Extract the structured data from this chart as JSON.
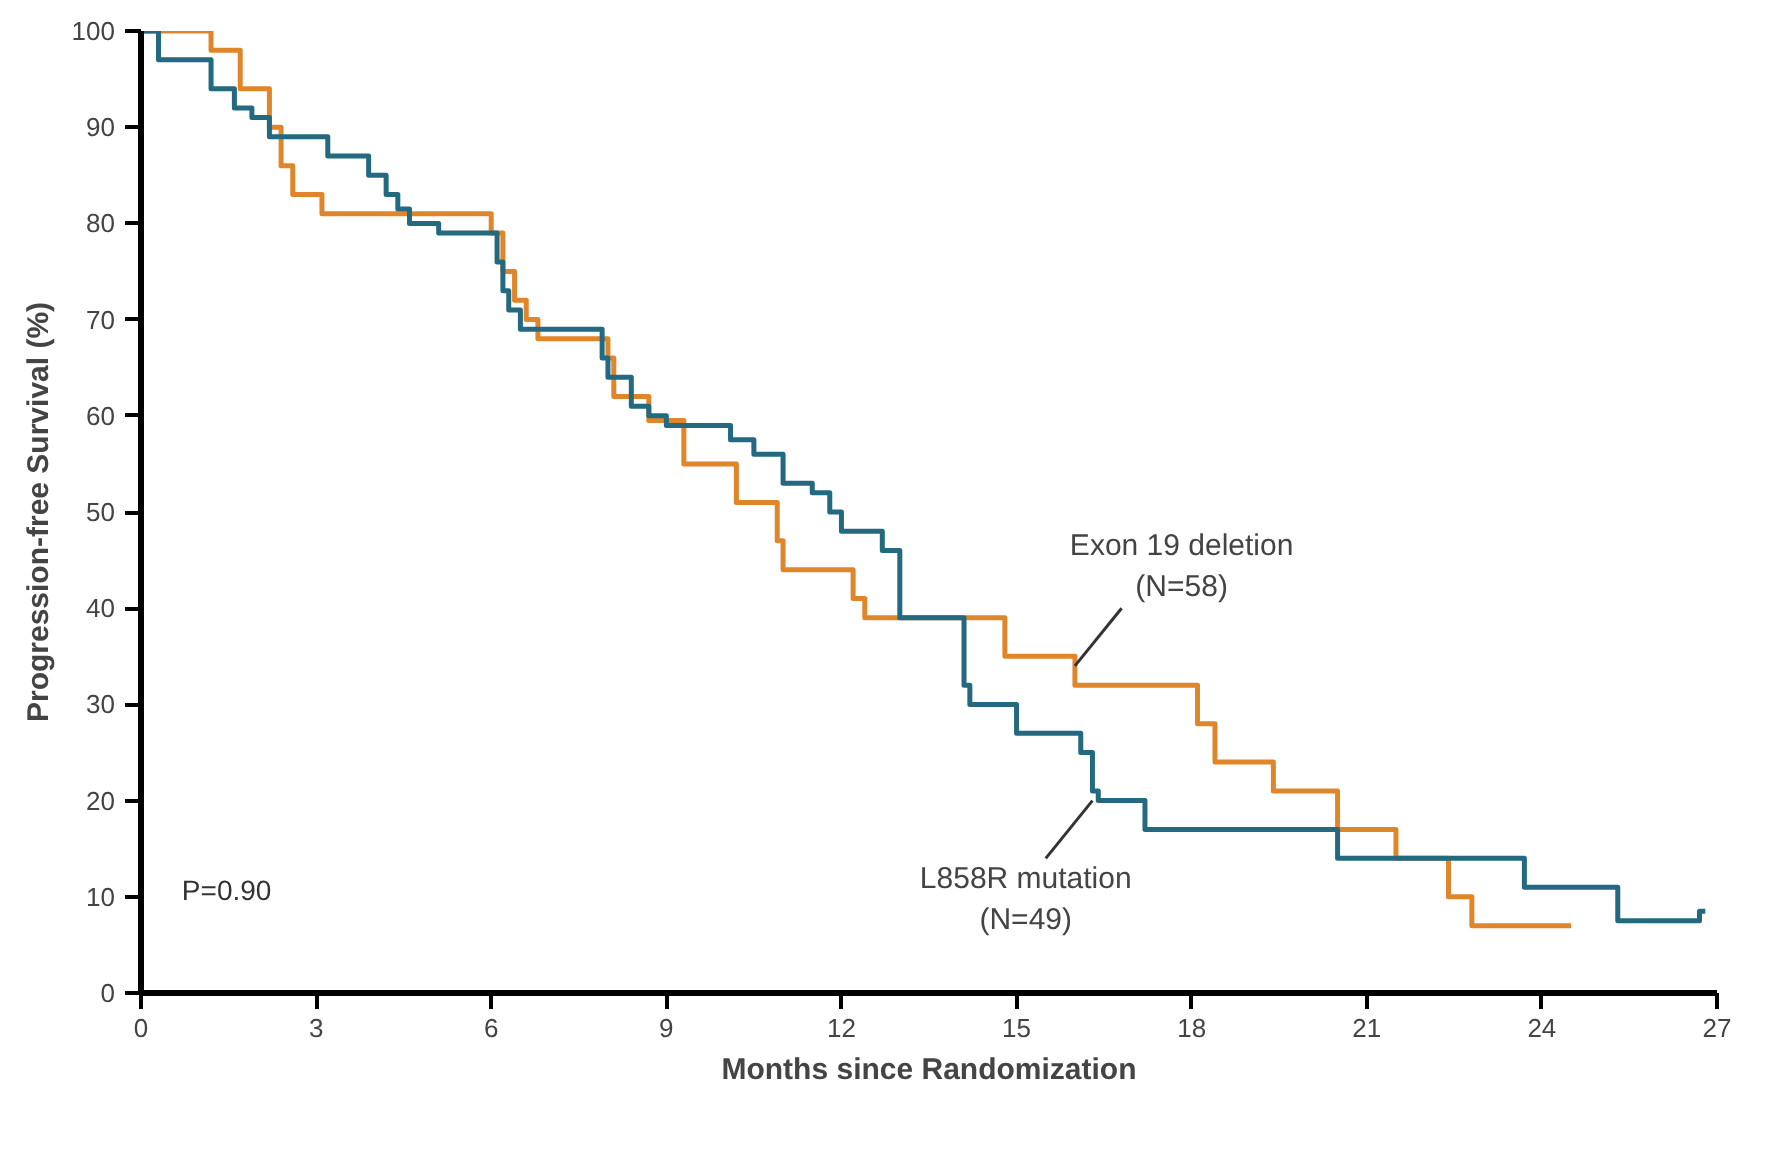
{
  "chart_data": {
    "type": "step",
    "xlabel": "Months since Randomization",
    "ylabel": "Progression-free Survival (%)",
    "xlim": [
      0,
      27
    ],
    "ylim": [
      0,
      100
    ],
    "xticks": [
      0,
      3,
      6,
      9,
      12,
      15,
      18,
      21,
      24,
      27
    ],
    "yticks": [
      0,
      10,
      20,
      30,
      40,
      50,
      60,
      70,
      80,
      90,
      100
    ],
    "grid": false,
    "series": [
      {
        "color": "#e0862a",
        "x": [
          0,
          1.2,
          1.7,
          2.2,
          2.4,
          2.6,
          3.1,
          6.0,
          6.2,
          6.4,
          6.6,
          6.8,
          8.0,
          8.1,
          8.7,
          9.3,
          10.2,
          10.9,
          11.0,
          12.2,
          12.4,
          14.8,
          16.0,
          18.1,
          18.4,
          19.4,
          20.5,
          21.5,
          22.4,
          22.8,
          24.5
        ],
        "values": [
          100,
          98,
          94,
          90,
          86,
          83,
          81,
          79,
          75,
          72,
          70,
          68,
          66,
          62,
          59.5,
          55,
          51,
          47,
          44,
          41,
          39,
          35,
          32,
          28,
          24,
          21,
          17,
          14,
          10,
          7,
          7
        ]
      },
      {
        "color": "#236a80",
        "x": [
          0,
          0.3,
          1.2,
          1.6,
          1.9,
          2.2,
          2.5,
          3.2,
          3.9,
          4.2,
          4.4,
          4.6,
          5.1,
          6.1,
          6.2,
          6.3,
          6.5,
          6.7,
          7.9,
          8.0,
          8.4,
          8.7,
          9.0,
          10.1,
          10.5,
          11.0,
          11.5,
          11.8,
          12.0,
          12.7,
          13.0,
          14.1,
          14.2,
          15.0,
          16.1,
          16.3,
          16.4,
          17.2,
          20.5,
          23.7,
          25.3,
          26.7,
          26.8
        ],
        "values": [
          100,
          97,
          94,
          92,
          91,
          89,
          89,
          87,
          85,
          83,
          81.5,
          80,
          79,
          76,
          73,
          71,
          69,
          69,
          66,
          64,
          61,
          60,
          59,
          57.5,
          56,
          53,
          52,
          50,
          48,
          46,
          39,
          32,
          30,
          27,
          25,
          21,
          20,
          17,
          14,
          11,
          7.5,
          8.5,
          8.5
        ]
      }
    ],
    "annotations": [
      {
        "text": "Exon 19 deletion\n(N=58)",
        "x": 16,
        "y": 34
      },
      {
        "text": "L858R mutation\n(N=49)",
        "x": 16.3,
        "y": 20
      },
      "P=0.90"
    ]
  }
}
